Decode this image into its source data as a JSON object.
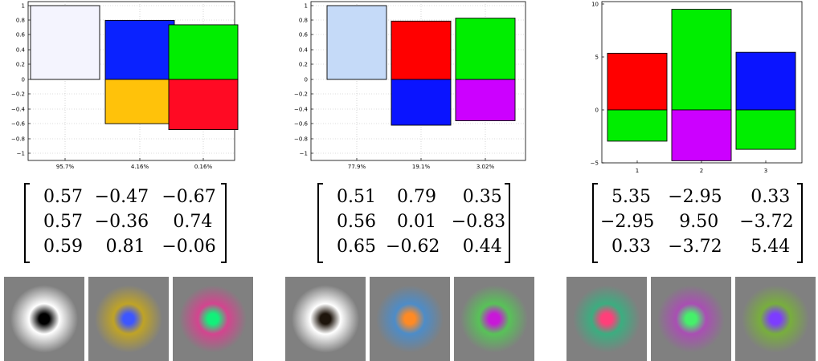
{
  "panels": [
    {
      "chart_data": {
        "type": "bar",
        "stacked": true,
        "categories": [
          "95.7%",
          "4.16%",
          "0.16%"
        ],
        "ylim": [
          -1.1,
          1.05
        ],
        "yticks": [
          "1",
          "0.8",
          "0.6",
          "0.4",
          "0.2",
          "0",
          "−0.2",
          "−0.4",
          "−0.6",
          "−0.8",
          "−1"
        ],
        "grid": true,
        "segments": [
          [
            {
              "value": 1.0,
              "color": "#f4f4fe"
            }
          ],
          [
            {
              "value": 0.8,
              "color": "#0a22ff"
            },
            {
              "value": -0.6,
              "color": "#ffc20a"
            }
          ],
          [
            {
              "value": 0.74,
              "color": "#00ee00"
            },
            {
              "value": -0.68,
              "color": "#ff0a23"
            }
          ]
        ]
      },
      "matrix": [
        [
          "0.57",
          "−0.47",
          "−0.67"
        ],
        [
          "0.57",
          "−0.36",
          "0.74"
        ],
        [
          "0.59",
          "0.81",
          "−0.06"
        ]
      ],
      "patches": [
        {
          "center": "#000000",
          "ring": "#ffffff",
          "bg": "#808080"
        },
        {
          "center": "#3d56ff",
          "ring": "#bfa326",
          "bg": "#808080"
        },
        {
          "center": "#12f07a",
          "ring": "#d3458f",
          "bg": "#808080"
        }
      ]
    },
    {
      "chart_data": {
        "type": "bar",
        "stacked": true,
        "categories": [
          "77.9%",
          "19.1%",
          "3.02%"
        ],
        "ylim": [
          -1.1,
          1.05
        ],
        "yticks": [
          "1",
          "0.8",
          "0.6",
          "0.4",
          "0.2",
          "0",
          "−0.2",
          "−0.4",
          "−0.6",
          "−0.8",
          "−1"
        ],
        "grid": true,
        "segments": [
          [
            {
              "value": 1.0,
              "color": "#c5daf8"
            }
          ],
          [
            {
              "value": 0.79,
              "color": "#ff0000"
            },
            {
              "value": -0.62,
              "color": "#0a14ff"
            }
          ],
          [
            {
              "value": 0.83,
              "color": "#00ee00"
            },
            {
              "value": -0.56,
              "color": "#cc00ff"
            }
          ]
        ]
      },
      "matrix": [
        [
          "0.51",
          "0.79",
          "0.35"
        ],
        [
          "0.56",
          "0.01",
          "−0.83"
        ],
        [
          "0.65",
          "−0.62",
          "0.44"
        ]
      ],
      "patches": [
        {
          "center": "#1e150c",
          "ring": "#ffffff",
          "bg": "#808080"
        },
        {
          "center": "#ff8a24",
          "ring": "#4d8cc8",
          "bg": "#808080"
        },
        {
          "center": "#c818d8",
          "ring": "#58c258",
          "bg": "#808080"
        }
      ]
    },
    {
      "chart_data": {
        "type": "bar",
        "stacked": true,
        "categories": [
          "1",
          "2",
          "3"
        ],
        "ylim": [
          -5,
          10
        ],
        "yticks": [
          "10",
          "5",
          "0",
          "−5"
        ],
        "grid": false,
        "segments": [
          [
            {
              "value": 5.35,
              "color": "#ff0000"
            },
            {
              "value": -2.95,
              "color": "#00ee00"
            }
          ],
          [
            {
              "value": 9.5,
              "color": "#00ee00"
            },
            {
              "value": -4.8,
              "color": "#cc00ff"
            }
          ],
          [
            {
              "value": 5.44,
              "color": "#0a14ff"
            },
            {
              "value": -3.72,
              "color": "#00ee00"
            }
          ]
        ]
      },
      "matrix": [
        [
          "5.35",
          "−2.95",
          "0.33"
        ],
        [
          "−2.95",
          "9.50",
          "−3.72"
        ],
        [
          "0.33",
          "−3.72",
          "5.44"
        ]
      ],
      "patches": [
        {
          "center": "#ff3f7a",
          "ring": "#3cad80",
          "bg": "#808080"
        },
        {
          "center": "#45f06a",
          "ring": "#a94fb3",
          "bg": "#808080"
        },
        {
          "center": "#7d3cff",
          "ring": "#78ae3d",
          "bg": "#808080"
        }
      ]
    }
  ]
}
